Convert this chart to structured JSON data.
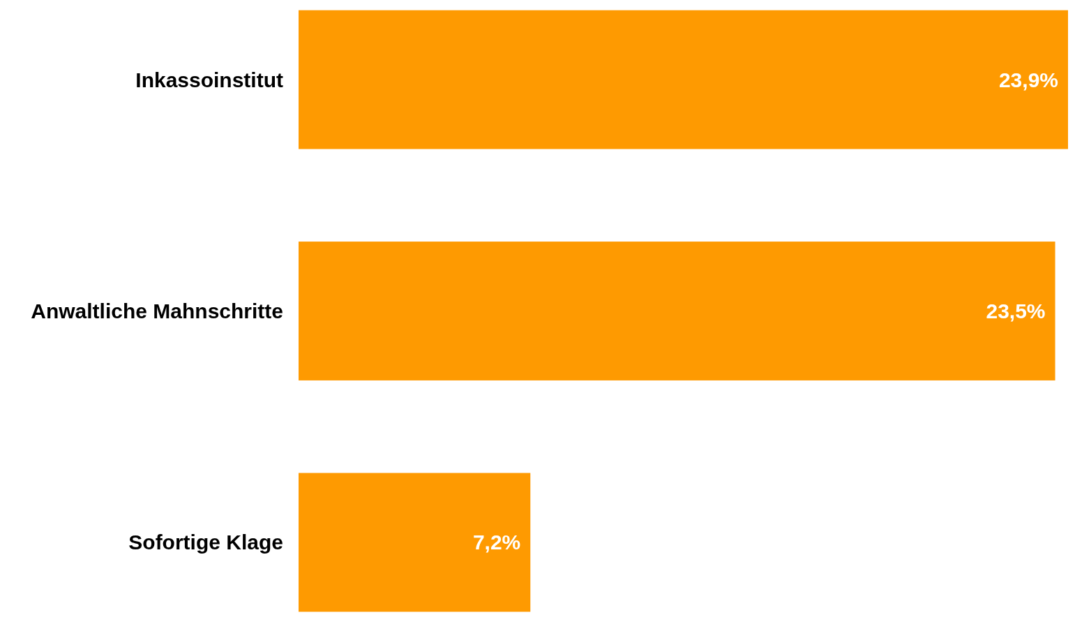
{
  "chart_data": {
    "type": "bar",
    "orientation": "horizontal",
    "categories": [
      "Inkassoinstitut",
      "Anwaltliche Mahnschritte",
      "Sofortige Klage"
    ],
    "values": [
      23.9,
      23.5,
      7.2
    ],
    "value_labels": [
      "23,9%",
      "23,5%",
      "7,2%"
    ],
    "color": "#fe9a01"
  }
}
